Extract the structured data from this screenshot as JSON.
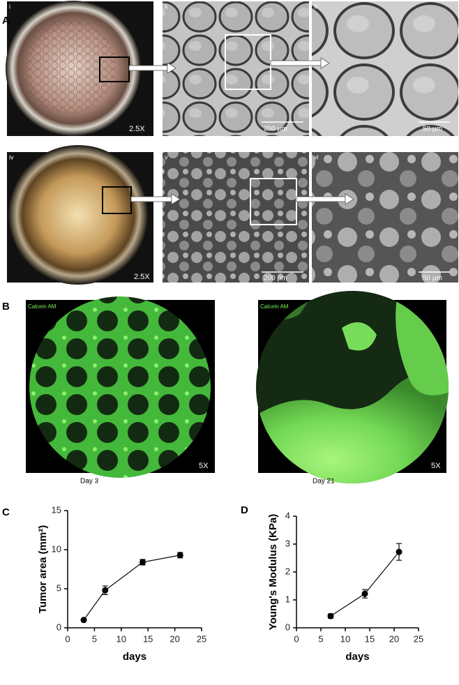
{
  "panel_a": {
    "label": "A",
    "images": [
      {
        "label": "i",
        "magnification": "2.5X"
      },
      {
        "label": "ii",
        "scale": "200 µm"
      },
      {
        "label": "iii",
        "scale": "50 µm"
      },
      {
        "label": "iv",
        "magnification": "2.5X"
      },
      {
        "label": "v",
        "scale": "200 µm"
      },
      {
        "label": "vi",
        "scale": "50 µm"
      }
    ]
  },
  "panel_b": {
    "label": "B",
    "images": [
      {
        "stain": "Calcein AM",
        "magnification": "5X",
        "caption": "Day 3"
      },
      {
        "stain": "Calcein AM",
        "magnification": "5X",
        "caption": "Day 21"
      }
    ]
  },
  "chart_data": [
    {
      "type": "line",
      "panel": "C",
      "xlabel": "days",
      "ylabel": "Tumor area (mm²)",
      "x": [
        3,
        7,
        14,
        21
      ],
      "values": [
        1.0,
        4.8,
        8.4,
        9.3
      ],
      "errors": [
        0.1,
        0.55,
        0.35,
        0.35
      ],
      "color": "#000000",
      "xlim": [
        0,
        25
      ],
      "xticks": [
        0,
        5,
        10,
        15,
        20,
        25
      ],
      "ylim": [
        0,
        15
      ],
      "yticks": [
        0,
        5,
        10,
        15
      ]
    },
    {
      "type": "line",
      "panel": "D",
      "xlabel": "days",
      "ylabel": "Young's Modulus (KPa)",
      "x": [
        7,
        14,
        21
      ],
      "values": [
        0.42,
        1.22,
        2.72
      ],
      "errors": [
        0.08,
        0.15,
        0.3
      ],
      "color": "#000000",
      "xlim": [
        0,
        25
      ],
      "xticks": [
        0,
        5,
        10,
        15,
        20,
        25
      ],
      "ylim": [
        0,
        4
      ],
      "yticks": [
        0,
        1,
        2,
        3,
        4
      ]
    }
  ]
}
